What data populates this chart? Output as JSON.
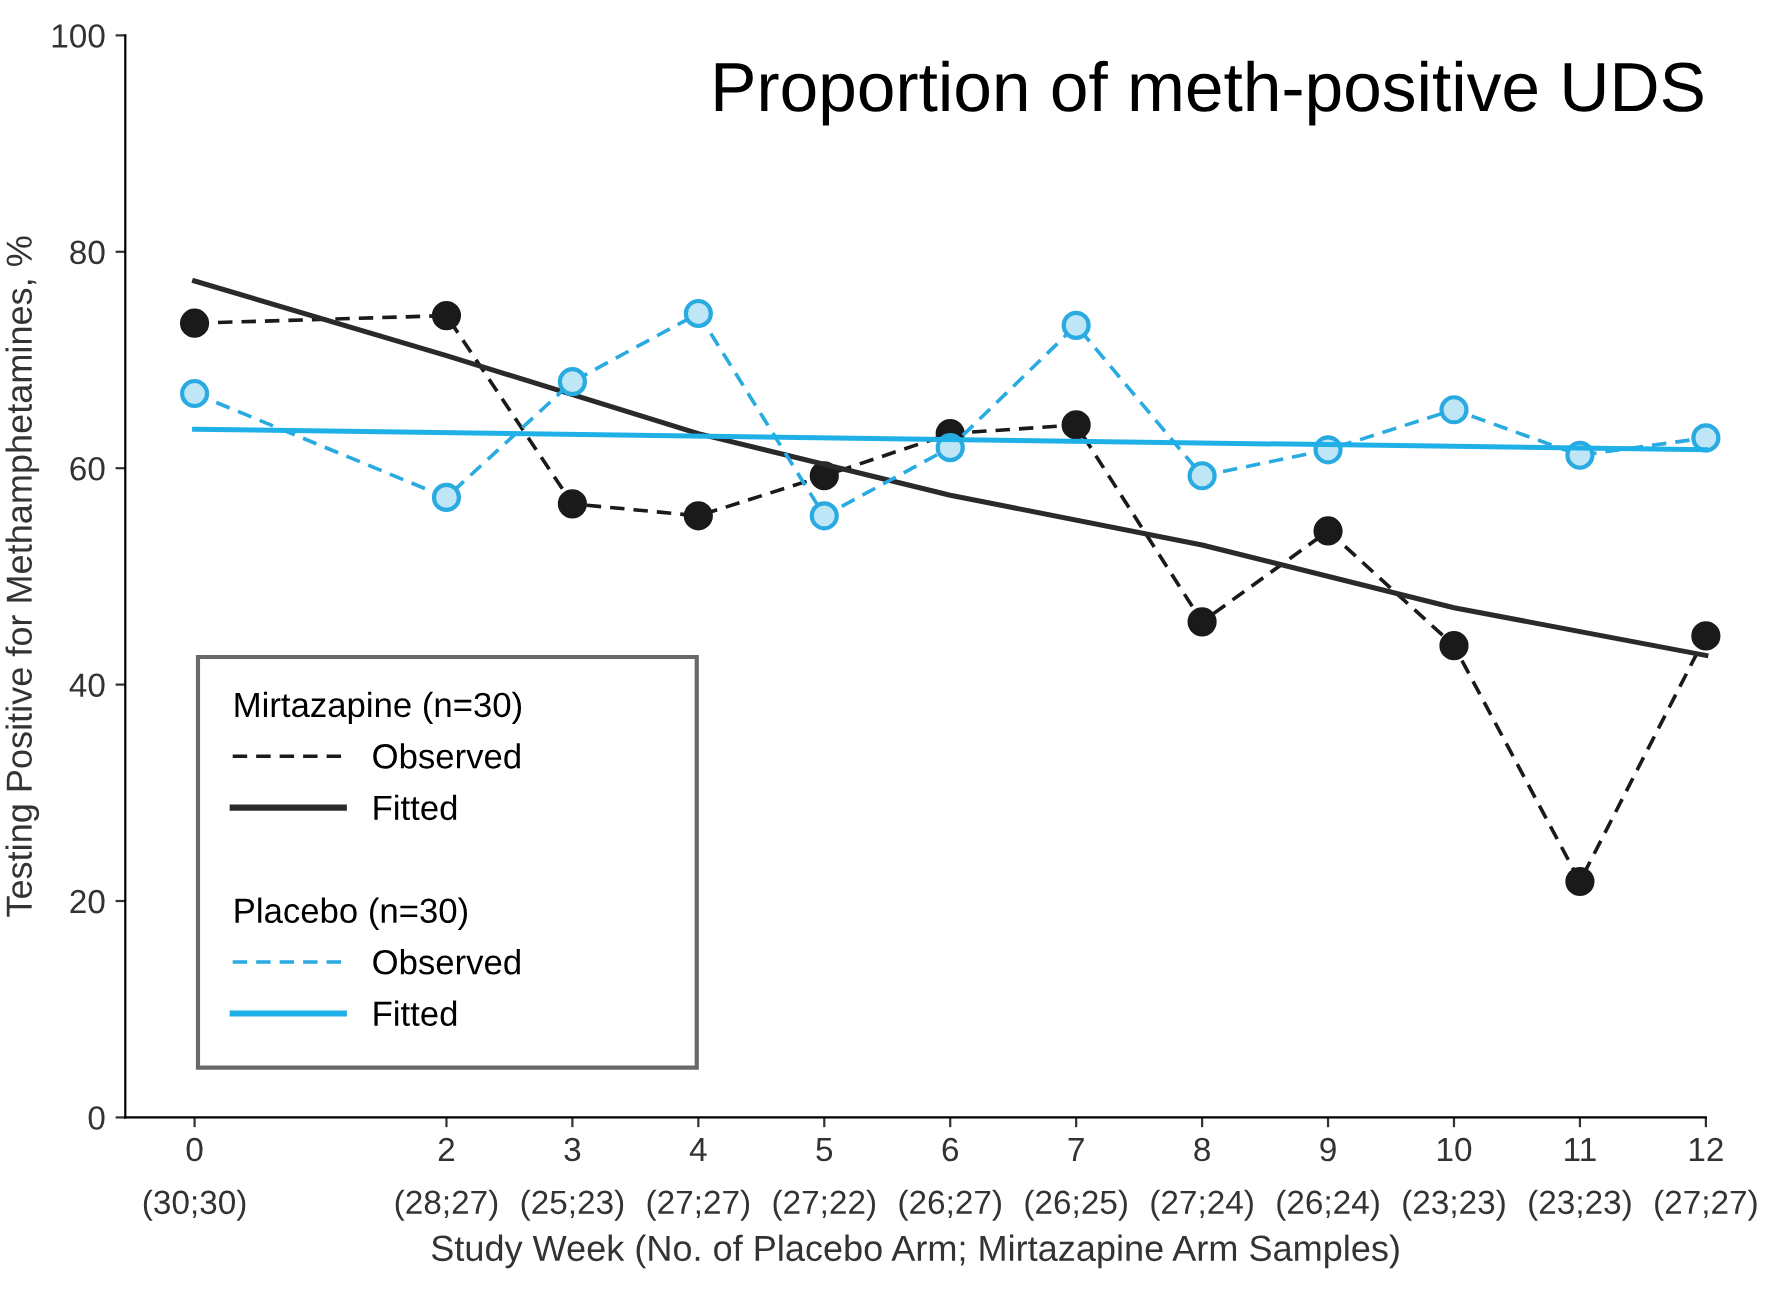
{
  "chart_data": {
    "type": "line",
    "title": "Proportion of meth-positive UDS",
    "xlabel": "Study Week (No. of Placebo Arm; Mirtazapine Arm Samples)",
    "ylabel": "Testing Positive for Methamphetamines, %",
    "x": [
      0,
      2,
      3,
      4,
      5,
      6,
      7,
      8,
      9,
      10,
      11,
      12
    ],
    "series": [
      {
        "name": "Observed",
        "color": "#1a1a1a",
        "line_style": "dashed",
        "marker": "circle",
        "values": [
          73.4,
          74.1,
          56.7,
          55.6,
          59.3,
          63.2,
          64.0,
          45.8,
          54.2,
          43.6,
          21.8,
          44.5
        ]
      },
      {
        "name": "Fitted",
        "color": "#2a2a2a",
        "line_style": "solid",
        "marker": "none",
        "x": [
          0,
          2,
          4,
          6,
          8,
          10,
          12
        ],
        "values": [
          77.3,
          70.4,
          63.2,
          57.5,
          52.9,
          47.1,
          42.7
        ]
      },
      {
        "name": "Observed",
        "color": "#29abe2",
        "line_style": "dashed",
        "marker": "circle",
        "values": [
          66.9,
          57.3,
          68.0,
          74.3,
          55.6,
          61.9,
          73.2,
          59.3,
          61.7,
          65.4,
          61.2,
          62.8
        ]
      },
      {
        "name": "Fitted",
        "color": "#1fb0e8",
        "line_style": "solid",
        "marker": "none",
        "x": [
          0,
          12
        ],
        "values": [
          63.6,
          61.7
        ]
      }
    ],
    "annotations": [
      "Mirtazapine (n=30)",
      "Placebo (n=30)",
      "(30;30)",
      "(28;27)",
      "(25;23)",
      "(27;27)",
      "(27;22)",
      "(26;27)",
      "(26;25)",
      "(27;24)",
      "(26;24)",
      "(23;23)",
      "(23;23)",
      "(27;27)"
    ],
    "xlim": [
      -0.55,
      12
    ],
    "xticks": [
      0,
      2,
      3,
      4,
      5,
      6,
      7,
      8,
      9,
      10,
      11,
      12
    ],
    "ylim": [
      0,
      100
    ],
    "yticks": [
      0,
      20,
      40,
      60,
      80,
      100
    ],
    "grid": false,
    "legend": "bottom left"
  }
}
